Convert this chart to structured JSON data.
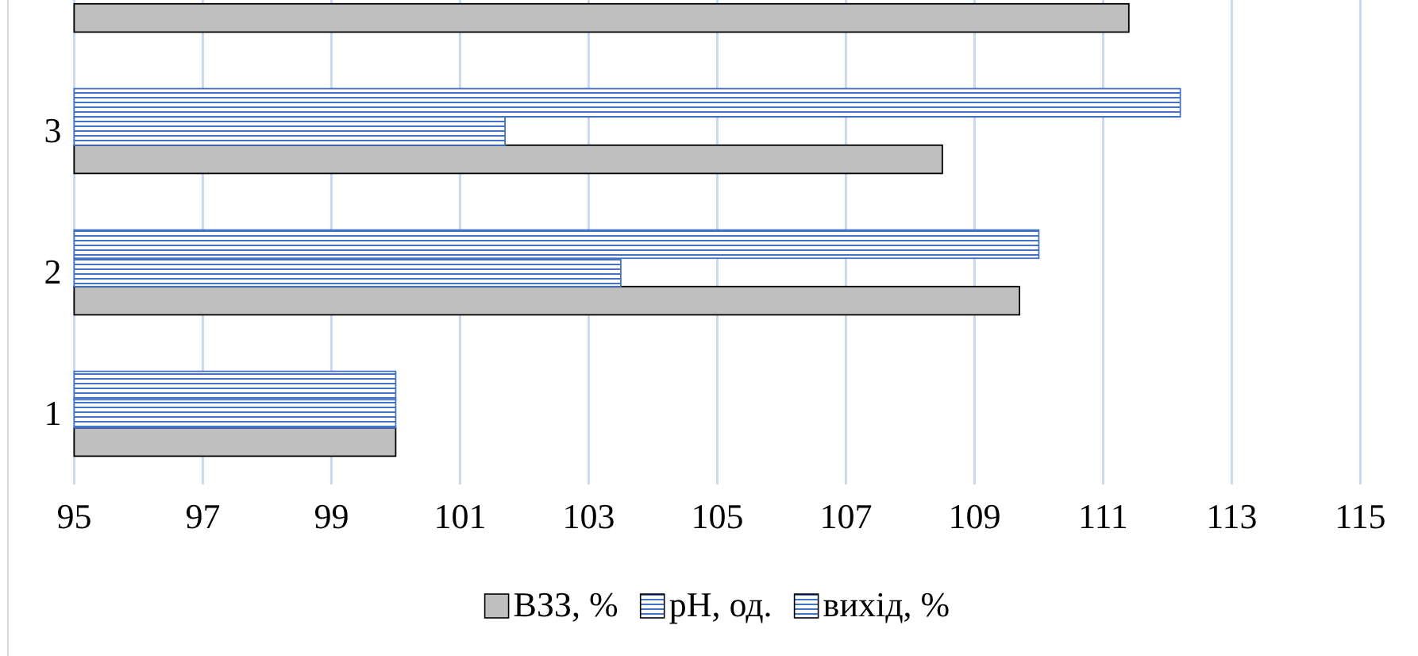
{
  "chart_data": {
    "type": "bar",
    "orientation": "horizontal",
    "categories": [
      null,
      "3",
      "2",
      "1"
    ],
    "series": [
      {
        "name": "ВЗЗ, %",
        "color": "#bfbfbf",
        "values": [
          111.4,
          108.5,
          109.7,
          100
        ]
      },
      {
        "name": "pH, од.",
        "color": "#4472c4",
        "values": [
          null,
          101.7,
          103.5,
          100
        ]
      },
      {
        "name": "вихід, %",
        "color": "#4472c4",
        "values": [
          null,
          112.2,
          110.0,
          100
        ]
      }
    ],
    "xlim": [
      95,
      115
    ],
    "xticks": [
      95,
      97,
      99,
      101,
      103,
      105,
      107,
      109,
      111,
      113,
      115
    ],
    "grid": "x",
    "legend": "bottom"
  }
}
